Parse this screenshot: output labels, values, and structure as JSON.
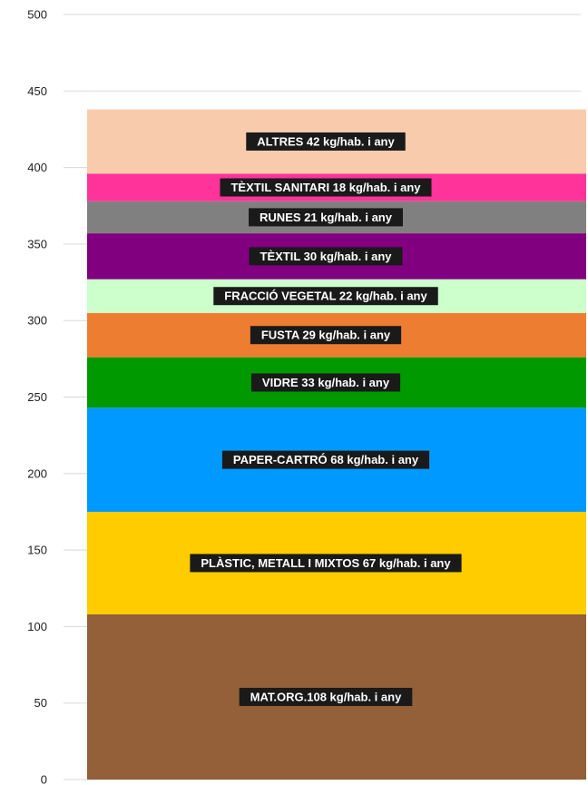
{
  "chart_data": {
    "type": "bar",
    "stacked": true,
    "ylim": [
      0,
      500
    ],
    "y_ticks": [
      0,
      50,
      100,
      150,
      200,
      250,
      300,
      350,
      400,
      450,
      500
    ],
    "y_tick_labels": [
      "0",
      "50",
      "100",
      "150",
      "200",
      "250",
      "300",
      "350",
      "400",
      "450",
      "500"
    ],
    "grid": true,
    "series": [
      {
        "label": "MAT.ORG.108 kg/hab. i any",
        "value": 108,
        "color": "#93603A"
      },
      {
        "label": "PLÀSTIC, METALL I MIXTOS 67 kg/hab. i any",
        "value": 67,
        "color": "#FFCC00"
      },
      {
        "label": "PAPER-CARTRÓ 68 kg/hab. i any",
        "value": 68,
        "color": "#0099FF"
      },
      {
        "label": "VIDRE 33 kg/hab. i any",
        "value": 33,
        "color": "#009900"
      },
      {
        "label": "FUSTA 29 kg/hab. i any",
        "value": 29,
        "color": "#ED7D31"
      },
      {
        "label": "FRACCIÓ VEGETAL 22 kg/hab. i any",
        "value": 22,
        "color": "#CCFFCC"
      },
      {
        "label": "TÈXTIL 30 kg/hab. i any",
        "value": 30,
        "color": "#800080"
      },
      {
        "label": "RUNES 21 kg/hab. i any",
        "value": 21,
        "color": "#808080"
      },
      {
        "label": "TÈXTIL SANITARI 18 kg/hab. i any",
        "value": 18,
        "color": "#FF3399"
      },
      {
        "label": "ALTRES 42 kg/hab. i any",
        "value": 42,
        "color": "#F8CBAD"
      }
    ]
  }
}
